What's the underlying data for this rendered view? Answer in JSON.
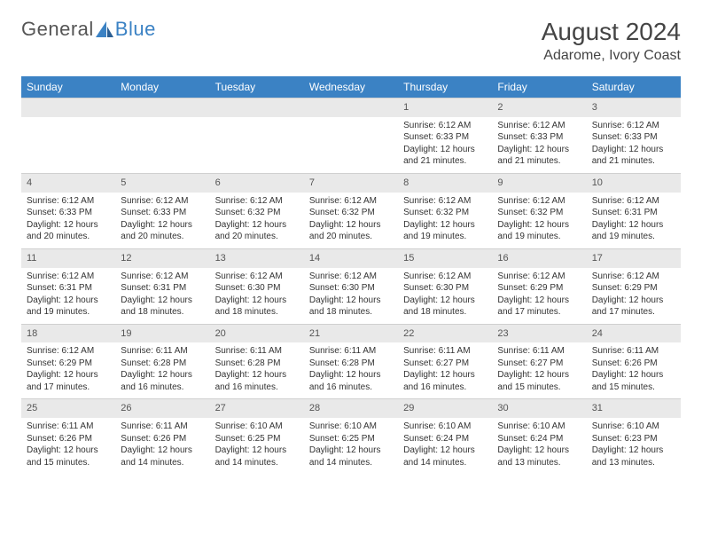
{
  "brand": {
    "name_part1": "General",
    "name_part2": "Blue",
    "logo_color": "#3b82c4"
  },
  "title": "August 2024",
  "location": "Adarome, Ivory Coast",
  "colors": {
    "header_bg": "#3b82c4",
    "header_text": "#ffffff",
    "daynum_bg": "#e9e9e9",
    "text": "#333333"
  },
  "day_headers": [
    "Sunday",
    "Monday",
    "Tuesday",
    "Wednesday",
    "Thursday",
    "Friday",
    "Saturday"
  ],
  "weeks": [
    [
      {
        "day": "",
        "lines": []
      },
      {
        "day": "",
        "lines": []
      },
      {
        "day": "",
        "lines": []
      },
      {
        "day": "",
        "lines": []
      },
      {
        "day": "1",
        "lines": [
          "Sunrise: 6:12 AM",
          "Sunset: 6:33 PM",
          "Daylight: 12 hours and 21 minutes."
        ]
      },
      {
        "day": "2",
        "lines": [
          "Sunrise: 6:12 AM",
          "Sunset: 6:33 PM",
          "Daylight: 12 hours and 21 minutes."
        ]
      },
      {
        "day": "3",
        "lines": [
          "Sunrise: 6:12 AM",
          "Sunset: 6:33 PM",
          "Daylight: 12 hours and 21 minutes."
        ]
      }
    ],
    [
      {
        "day": "4",
        "lines": [
          "Sunrise: 6:12 AM",
          "Sunset: 6:33 PM",
          "Daylight: 12 hours and 20 minutes."
        ]
      },
      {
        "day": "5",
        "lines": [
          "Sunrise: 6:12 AM",
          "Sunset: 6:33 PM",
          "Daylight: 12 hours and 20 minutes."
        ]
      },
      {
        "day": "6",
        "lines": [
          "Sunrise: 6:12 AM",
          "Sunset: 6:32 PM",
          "Daylight: 12 hours and 20 minutes."
        ]
      },
      {
        "day": "7",
        "lines": [
          "Sunrise: 6:12 AM",
          "Sunset: 6:32 PM",
          "Daylight: 12 hours and 20 minutes."
        ]
      },
      {
        "day": "8",
        "lines": [
          "Sunrise: 6:12 AM",
          "Sunset: 6:32 PM",
          "Daylight: 12 hours and 19 minutes."
        ]
      },
      {
        "day": "9",
        "lines": [
          "Sunrise: 6:12 AM",
          "Sunset: 6:32 PM",
          "Daylight: 12 hours and 19 minutes."
        ]
      },
      {
        "day": "10",
        "lines": [
          "Sunrise: 6:12 AM",
          "Sunset: 6:31 PM",
          "Daylight: 12 hours and 19 minutes."
        ]
      }
    ],
    [
      {
        "day": "11",
        "lines": [
          "Sunrise: 6:12 AM",
          "Sunset: 6:31 PM",
          "Daylight: 12 hours and 19 minutes."
        ]
      },
      {
        "day": "12",
        "lines": [
          "Sunrise: 6:12 AM",
          "Sunset: 6:31 PM",
          "Daylight: 12 hours and 18 minutes."
        ]
      },
      {
        "day": "13",
        "lines": [
          "Sunrise: 6:12 AM",
          "Sunset: 6:30 PM",
          "Daylight: 12 hours and 18 minutes."
        ]
      },
      {
        "day": "14",
        "lines": [
          "Sunrise: 6:12 AM",
          "Sunset: 6:30 PM",
          "Daylight: 12 hours and 18 minutes."
        ]
      },
      {
        "day": "15",
        "lines": [
          "Sunrise: 6:12 AM",
          "Sunset: 6:30 PM",
          "Daylight: 12 hours and 18 minutes."
        ]
      },
      {
        "day": "16",
        "lines": [
          "Sunrise: 6:12 AM",
          "Sunset: 6:29 PM",
          "Daylight: 12 hours and 17 minutes."
        ]
      },
      {
        "day": "17",
        "lines": [
          "Sunrise: 6:12 AM",
          "Sunset: 6:29 PM",
          "Daylight: 12 hours and 17 minutes."
        ]
      }
    ],
    [
      {
        "day": "18",
        "lines": [
          "Sunrise: 6:12 AM",
          "Sunset: 6:29 PM",
          "Daylight: 12 hours and 17 minutes."
        ]
      },
      {
        "day": "19",
        "lines": [
          "Sunrise: 6:11 AM",
          "Sunset: 6:28 PM",
          "Daylight: 12 hours and 16 minutes."
        ]
      },
      {
        "day": "20",
        "lines": [
          "Sunrise: 6:11 AM",
          "Sunset: 6:28 PM",
          "Daylight: 12 hours and 16 minutes."
        ]
      },
      {
        "day": "21",
        "lines": [
          "Sunrise: 6:11 AM",
          "Sunset: 6:28 PM",
          "Daylight: 12 hours and 16 minutes."
        ]
      },
      {
        "day": "22",
        "lines": [
          "Sunrise: 6:11 AM",
          "Sunset: 6:27 PM",
          "Daylight: 12 hours and 16 minutes."
        ]
      },
      {
        "day": "23",
        "lines": [
          "Sunrise: 6:11 AM",
          "Sunset: 6:27 PM",
          "Daylight: 12 hours and 15 minutes."
        ]
      },
      {
        "day": "24",
        "lines": [
          "Sunrise: 6:11 AM",
          "Sunset: 6:26 PM",
          "Daylight: 12 hours and 15 minutes."
        ]
      }
    ],
    [
      {
        "day": "25",
        "lines": [
          "Sunrise: 6:11 AM",
          "Sunset: 6:26 PM",
          "Daylight: 12 hours and 15 minutes."
        ]
      },
      {
        "day": "26",
        "lines": [
          "Sunrise: 6:11 AM",
          "Sunset: 6:26 PM",
          "Daylight: 12 hours and 14 minutes."
        ]
      },
      {
        "day": "27",
        "lines": [
          "Sunrise: 6:10 AM",
          "Sunset: 6:25 PM",
          "Daylight: 12 hours and 14 minutes."
        ]
      },
      {
        "day": "28",
        "lines": [
          "Sunrise: 6:10 AM",
          "Sunset: 6:25 PM",
          "Daylight: 12 hours and 14 minutes."
        ]
      },
      {
        "day": "29",
        "lines": [
          "Sunrise: 6:10 AM",
          "Sunset: 6:24 PM",
          "Daylight: 12 hours and 14 minutes."
        ]
      },
      {
        "day": "30",
        "lines": [
          "Sunrise: 6:10 AM",
          "Sunset: 6:24 PM",
          "Daylight: 12 hours and 13 minutes."
        ]
      },
      {
        "day": "31",
        "lines": [
          "Sunrise: 6:10 AM",
          "Sunset: 6:23 PM",
          "Daylight: 12 hours and 13 minutes."
        ]
      }
    ]
  ]
}
